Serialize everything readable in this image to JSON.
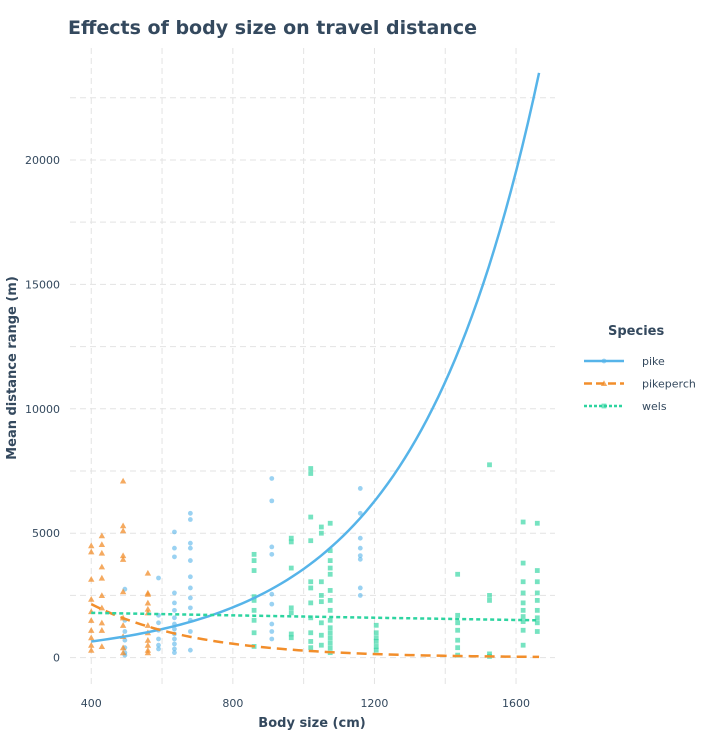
{
  "chart_data": {
    "type": "scatter",
    "title": "Effects of body size on travel distance",
    "xlabel": "Body size (cm)",
    "ylabel": "Mean distance range (m)",
    "xlim": [
      340,
      1710
    ],
    "ylim": [
      -1100,
      24500
    ],
    "x_ticks": [
      400,
      800,
      1200,
      1600
    ],
    "y_ticks": [
      0,
      5000,
      10000,
      15000,
      20000
    ],
    "x_tick_labels": [
      "400",
      "800",
      "1200",
      "1600"
    ],
    "y_tick_labels": [
      "0",
      "5000",
      "10000",
      "15000",
      "20000"
    ],
    "grid": true,
    "legend": {
      "title": "Species",
      "position": "right"
    },
    "series": [
      {
        "name": "pike",
        "color": "#56b4e9",
        "marker": "circle",
        "line_style": "solid",
        "trend": {
          "x_start": 400,
          "x_end": 1665,
          "y_start": 650,
          "y_end": 23500
        },
        "points": [
          [
            495,
            2750
          ],
          [
            495,
            1500
          ],
          [
            495,
            1050
          ],
          [
            495,
            700
          ],
          [
            495,
            400
          ],
          [
            495,
            200
          ],
          [
            495,
            100
          ],
          [
            590,
            3200
          ],
          [
            590,
            1700
          ],
          [
            590,
            1400
          ],
          [
            590,
            1100
          ],
          [
            590,
            750
          ],
          [
            590,
            500
          ],
          [
            590,
            350
          ],
          [
            635,
            5050
          ],
          [
            635,
            4400
          ],
          [
            635,
            4050
          ],
          [
            635,
            2600
          ],
          [
            635,
            2200
          ],
          [
            635,
            1900
          ],
          [
            635,
            1600
          ],
          [
            635,
            1350
          ],
          [
            635,
            1150
          ],
          [
            635,
            950
          ],
          [
            635,
            750
          ],
          [
            635,
            550
          ],
          [
            635,
            350
          ],
          [
            635,
            200
          ],
          [
            680,
            5800
          ],
          [
            680,
            5550
          ],
          [
            680,
            4600
          ],
          [
            680,
            4400
          ],
          [
            680,
            3900
          ],
          [
            680,
            3250
          ],
          [
            680,
            2800
          ],
          [
            680,
            2400
          ],
          [
            680,
            2000
          ],
          [
            680,
            1500
          ],
          [
            680,
            1050
          ],
          [
            680,
            300
          ],
          [
            910,
            7200
          ],
          [
            910,
            6300
          ],
          [
            910,
            4450
          ],
          [
            910,
            4150
          ],
          [
            910,
            2550
          ],
          [
            910,
            2150
          ],
          [
            910,
            1350
          ],
          [
            910,
            1050
          ],
          [
            910,
            750
          ],
          [
            1160,
            6800
          ],
          [
            1160,
            5800
          ],
          [
            1160,
            4800
          ],
          [
            1160,
            4400
          ],
          [
            1160,
            4100
          ],
          [
            1160,
            3950
          ],
          [
            1160,
            2800
          ],
          [
            1160,
            2500
          ]
        ]
      },
      {
        "name": "pikeperch",
        "color": "#f28e2b",
        "marker": "triangle",
        "line_style": "dashed",
        "trend": {
          "x_start": 400,
          "x_end": 1665,
          "y_start": 2150,
          "y_end": 30
        },
        "points": [
          [
            400,
            4500
          ],
          [
            400,
            4250
          ],
          [
            400,
            3150
          ],
          [
            400,
            2350
          ],
          [
            400,
            1850
          ],
          [
            400,
            1500
          ],
          [
            400,
            1100
          ],
          [
            400,
            800
          ],
          [
            400,
            500
          ],
          [
            400,
            300
          ],
          [
            430,
            4900
          ],
          [
            430,
            4550
          ],
          [
            430,
            4200
          ],
          [
            430,
            3650
          ],
          [
            430,
            3200
          ],
          [
            430,
            2500
          ],
          [
            430,
            2000
          ],
          [
            430,
            1400
          ],
          [
            430,
            1100
          ],
          [
            430,
            450
          ],
          [
            490,
            7100
          ],
          [
            490,
            5300
          ],
          [
            490,
            5100
          ],
          [
            490,
            4100
          ],
          [
            490,
            3950
          ],
          [
            490,
            2650
          ],
          [
            490,
            1600
          ],
          [
            490,
            1300
          ],
          [
            490,
            850
          ],
          [
            490,
            400
          ],
          [
            490,
            200
          ],
          [
            560,
            3400
          ],
          [
            560,
            2600
          ],
          [
            560,
            2550
          ],
          [
            560,
            2200
          ],
          [
            560,
            1950
          ],
          [
            560,
            1800
          ],
          [
            560,
            1300
          ],
          [
            560,
            1000
          ],
          [
            560,
            700
          ],
          [
            560,
            500
          ],
          [
            560,
            300
          ],
          [
            560,
            200
          ]
        ]
      },
      {
        "name": "wels",
        "color": "#2dd4a0",
        "marker": "square",
        "line_style": "dotted",
        "trend": {
          "x_start": 400,
          "x_end": 1665,
          "y_start": 1800,
          "y_end": 1500
        },
        "points": [
          [
            860,
            4150
          ],
          [
            860,
            3900
          ],
          [
            860,
            3500
          ],
          [
            860,
            2450
          ],
          [
            860,
            2300
          ],
          [
            860,
            1900
          ],
          [
            860,
            1500
          ],
          [
            860,
            1000
          ],
          [
            860,
            450
          ],
          [
            965,
            4800
          ],
          [
            965,
            4650
          ],
          [
            965,
            3600
          ],
          [
            965,
            2000
          ],
          [
            965,
            1800
          ],
          [
            965,
            950
          ],
          [
            965,
            800
          ],
          [
            1020,
            7600
          ],
          [
            1020,
            7400
          ],
          [
            1020,
            5650
          ],
          [
            1020,
            4700
          ],
          [
            1020,
            3050
          ],
          [
            1020,
            2800
          ],
          [
            1020,
            2200
          ],
          [
            1020,
            1600
          ],
          [
            1020,
            1000
          ],
          [
            1020,
            650
          ],
          [
            1020,
            400
          ],
          [
            1050,
            5250
          ],
          [
            1050,
            5000
          ],
          [
            1050,
            3050
          ],
          [
            1050,
            2500
          ],
          [
            1050,
            2250
          ],
          [
            1050,
            1400
          ],
          [
            1050,
            900
          ],
          [
            1050,
            500
          ],
          [
            1075,
            5400
          ],
          [
            1075,
            4300
          ],
          [
            1075,
            3900
          ],
          [
            1075,
            3600
          ],
          [
            1075,
            3350
          ],
          [
            1075,
            2700
          ],
          [
            1075,
            2300
          ],
          [
            1075,
            1900
          ],
          [
            1075,
            1500
          ],
          [
            1075,
            1200
          ],
          [
            1075,
            1000
          ],
          [
            1075,
            800
          ],
          [
            1075,
            600
          ],
          [
            1075,
            400
          ],
          [
            1075,
            200
          ],
          [
            1205,
            1300
          ],
          [
            1205,
            1000
          ],
          [
            1205,
            800
          ],
          [
            1205,
            650
          ],
          [
            1205,
            450
          ],
          [
            1205,
            300
          ],
          [
            1435,
            3350
          ],
          [
            1435,
            1700
          ],
          [
            1435,
            1400
          ],
          [
            1435,
            1100
          ],
          [
            1435,
            700
          ],
          [
            1435,
            400
          ],
          [
            1435,
            100
          ],
          [
            1525,
            7750
          ],
          [
            1525,
            2500
          ],
          [
            1525,
            2300
          ],
          [
            1525,
            150
          ],
          [
            1525,
            50
          ],
          [
            1620,
            5450
          ],
          [
            1620,
            3800
          ],
          [
            1620,
            3050
          ],
          [
            1620,
            2600
          ],
          [
            1620,
            2200
          ],
          [
            1620,
            1900
          ],
          [
            1620,
            1650
          ],
          [
            1620,
            1450
          ],
          [
            1620,
            1100
          ],
          [
            1620,
            500
          ],
          [
            1660,
            5400
          ],
          [
            1660,
            3500
          ],
          [
            1660,
            3050
          ],
          [
            1660,
            2600
          ],
          [
            1660,
            2300
          ],
          [
            1660,
            1900
          ],
          [
            1660,
            1600
          ],
          [
            1660,
            1400
          ],
          [
            1660,
            1050
          ]
        ]
      }
    ]
  }
}
